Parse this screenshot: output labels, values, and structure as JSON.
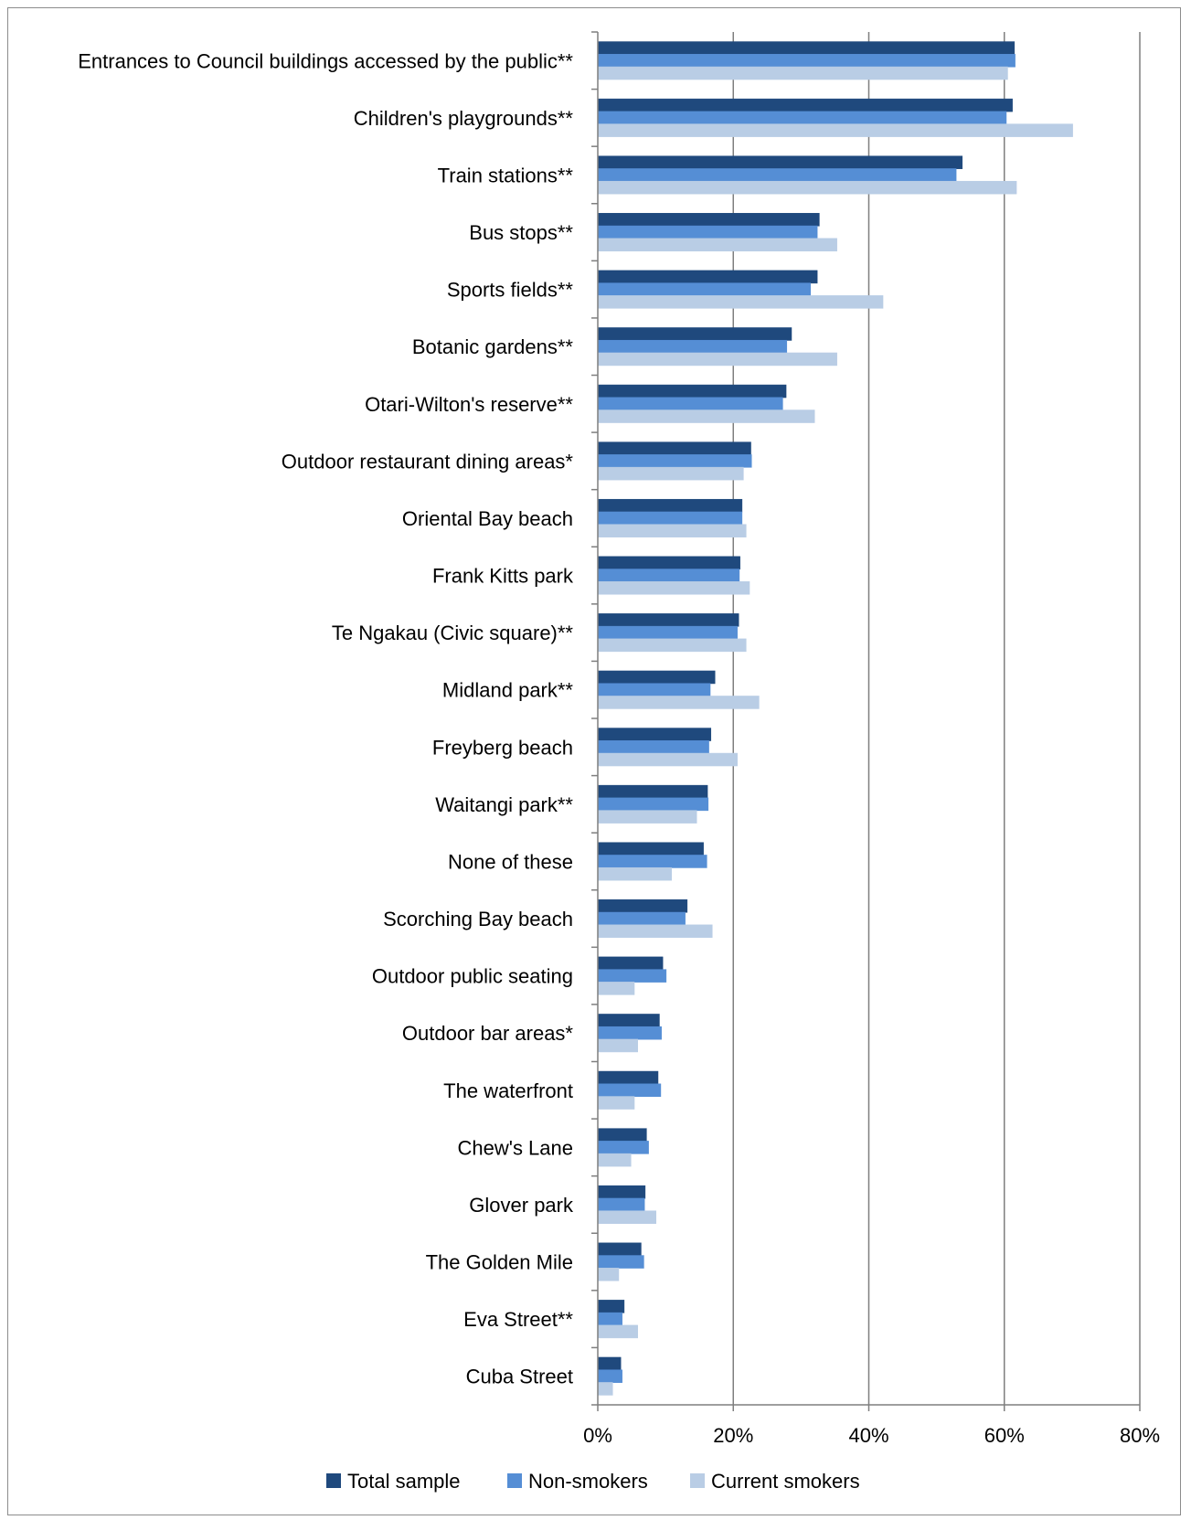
{
  "chart_data": {
    "type": "bar",
    "orientation": "horizontal",
    "title": "",
    "xlabel": "",
    "ylabel": "",
    "xlim": [
      0,
      80
    ],
    "x_ticks": [
      "0%",
      "20%",
      "40%",
      "60%",
      "80%"
    ],
    "grid": "vertical",
    "legend_position": "bottom",
    "categories": [
      "Entrances to Council buildings accessed by the public**",
      "Children's playgrounds**",
      "Train stations**",
      "Bus stops**",
      "Sports fields**",
      "Botanic gardens**",
      "Otari-Wilton's reserve**",
      "Outdoor restaurant dining areas*",
      "Oriental Bay beach",
      "Frank Kitts park",
      "Te Ngakau (Civic square)**",
      "Midland park**",
      "Freyberg beach",
      "Waitangi park**",
      "None of these",
      "Scorching Bay beach",
      "Outdoor public seating",
      "Outdoor bar areas*",
      "The waterfront",
      "Chew's Lane",
      "Glover park",
      "The Golden Mile",
      "Eva Street**",
      "Cuba Street"
    ],
    "series": [
      {
        "name": "Total sample",
        "color": "#1f497d",
        "values": [
          61.5,
          61.2,
          53.8,
          32.7,
          32.4,
          28.6,
          27.8,
          22.6,
          21.3,
          21.0,
          20.8,
          17.3,
          16.7,
          16.2,
          15.6,
          13.2,
          9.6,
          9.1,
          8.9,
          7.2,
          7.0,
          6.4,
          3.9,
          3.4
        ],
        "legend_icon": "square-swatch"
      },
      {
        "name": "Non-smokers",
        "color": "#558ed5",
        "values": [
          61.6,
          60.3,
          52.9,
          32.4,
          31.4,
          27.9,
          27.3,
          22.7,
          21.3,
          20.9,
          20.6,
          16.6,
          16.4,
          16.3,
          16.1,
          12.9,
          10.1,
          9.4,
          9.3,
          7.5,
          6.9,
          6.8,
          3.6,
          3.6
        ],
        "legend_icon": "square-swatch"
      },
      {
        "name": "Current smokers",
        "color": "#b9cde5",
        "values": [
          60.5,
          70.1,
          61.8,
          35.3,
          42.1,
          35.3,
          32.0,
          21.5,
          21.9,
          22.4,
          21.9,
          23.8,
          20.6,
          14.6,
          10.9,
          16.9,
          5.4,
          5.9,
          5.4,
          4.9,
          8.6,
          3.1,
          5.9,
          2.2
        ],
        "legend_icon": "square-swatch"
      }
    ],
    "colors": {
      "gridline": "#7f7f7f",
      "axis": "#7f7f7f",
      "frame": "#8c8c8c"
    }
  }
}
